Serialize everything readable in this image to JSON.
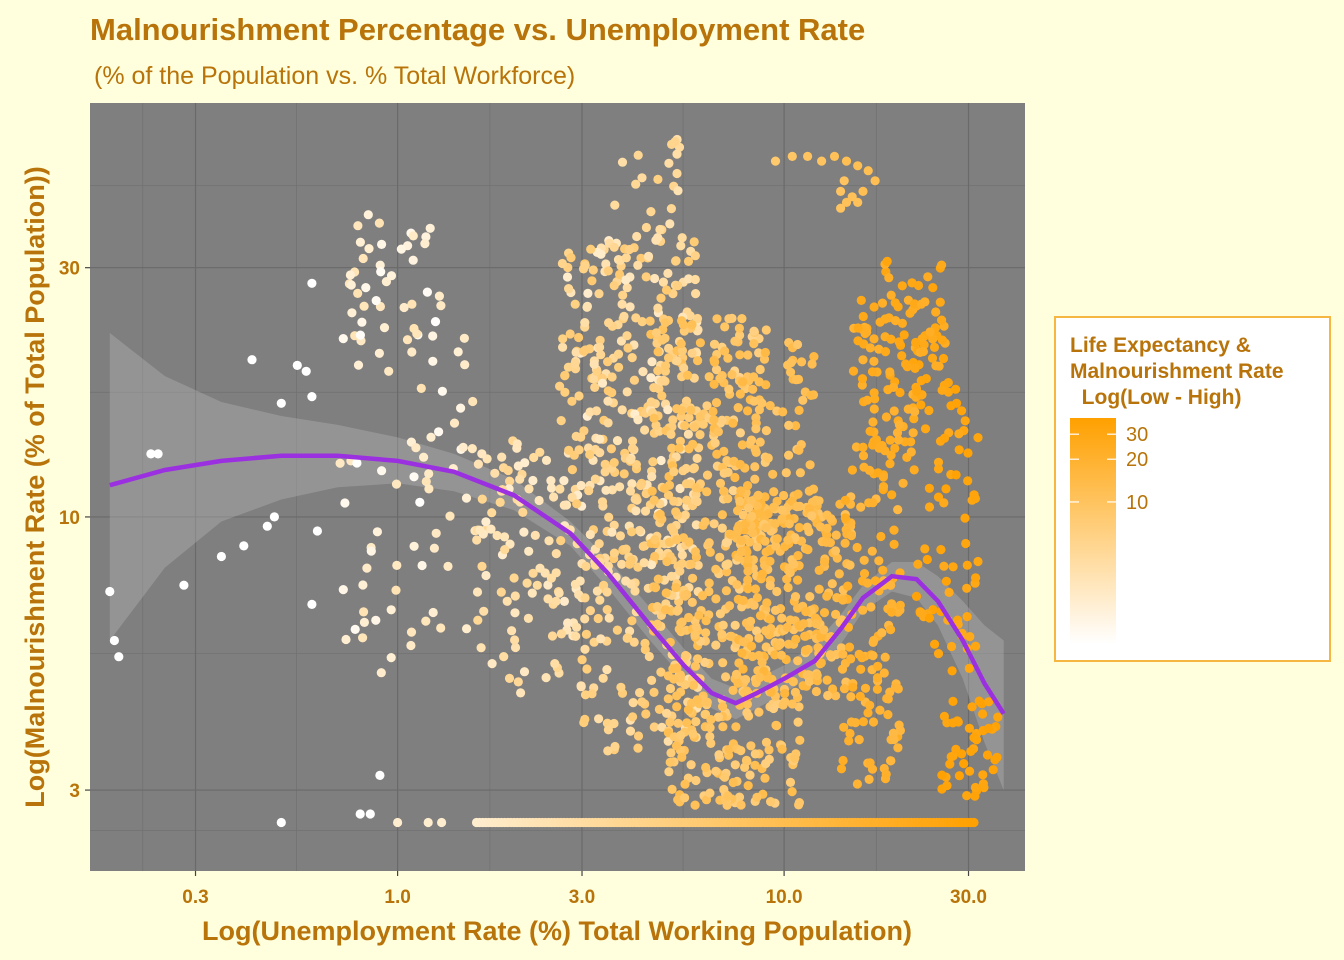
{
  "chart_data": {
    "type": "scatter",
    "title": "Malnourishment Percentage vs. Unemployment Rate",
    "subtitle": "(% of the Population vs. % Total Workforce)",
    "xlabel": "Log(Unemployment Rate (%) Total Working Population)",
    "ylabel": "Log(Malnourishment Rate (% of Total Population))",
    "x_scale": "log10",
    "y_scale": "log10",
    "xlim": [
      0.16,
      42
    ],
    "ylim": [
      2.1,
      62
    ],
    "x_ticks": [
      {
        "v": 0.3,
        "label": "0.3"
      },
      {
        "v": 1,
        "label": "1.0"
      },
      {
        "v": 3,
        "label": "3.0"
      },
      {
        "v": 10,
        "label": "10.0"
      },
      {
        "v": 30,
        "label": "30.0"
      }
    ],
    "y_ticks": [
      {
        "v": 3,
        "label": "3"
      },
      {
        "v": 10,
        "label": "10"
      },
      {
        "v": 30,
        "label": "30"
      }
    ],
    "grid": true,
    "panel_color": "#7f7f7f",
    "point_color_low": "#ffffff",
    "point_color_high": "#ffa000",
    "legend": {
      "title_lines": [
        "Life Expectancy &",
        "Malnourishment Rate",
        "  Log(Low - High)"
      ],
      "placement": "right",
      "ticks": [
        {
          "v": 10,
          "label": "10"
        },
        {
          "v": 20,
          "label": "20"
        },
        {
          "v": 30,
          "label": "30"
        }
      ],
      "range": [
        1,
        39
      ]
    },
    "smooth": {
      "color": "#9b30e0",
      "points": [
        [
          0.18,
          11.5
        ],
        [
          0.25,
          12.3
        ],
        [
          0.35,
          12.8
        ],
        [
          0.5,
          13.1
        ],
        [
          0.7,
          13.1
        ],
        [
          1.0,
          12.8
        ],
        [
          1.4,
          12.2
        ],
        [
          2.0,
          11.0
        ],
        [
          2.8,
          9.3
        ],
        [
          3.5,
          7.8
        ],
        [
          4.5,
          6.2
        ],
        [
          5.5,
          5.2
        ],
        [
          6.5,
          4.6
        ],
        [
          7.5,
          4.4
        ],
        [
          8.5,
          4.6
        ],
        [
          10,
          4.9
        ],
        [
          12,
          5.3
        ],
        [
          14,
          6.1
        ],
        [
          16,
          7.0
        ],
        [
          19,
          7.7
        ],
        [
          22,
          7.6
        ],
        [
          25,
          6.9
        ],
        [
          29,
          5.8
        ],
        [
          33,
          4.8
        ],
        [
          37,
          4.2
        ]
      ],
      "band_lo": [
        [
          0.18,
          5.8
        ],
        [
          0.25,
          8.0
        ],
        [
          0.35,
          9.8
        ],
        [
          0.5,
          10.8
        ],
        [
          0.7,
          11.4
        ],
        [
          1.0,
          11.6
        ],
        [
          1.4,
          11.2
        ],
        [
          2.0,
          10.3
        ],
        [
          2.8,
          8.8
        ],
        [
          3.5,
          7.3
        ],
        [
          4.5,
          5.8
        ],
        [
          5.5,
          4.9
        ],
        [
          6.5,
          4.3
        ],
        [
          7.5,
          4.1
        ],
        [
          8.5,
          4.3
        ],
        [
          10,
          4.6
        ],
        [
          12,
          5.0
        ],
        [
          14,
          5.7
        ],
        [
          16,
          6.6
        ],
        [
          19,
          7.2
        ],
        [
          22,
          7.0
        ],
        [
          25,
          6.2
        ],
        [
          29,
          4.9
        ],
        [
          33,
          3.7
        ],
        [
          37,
          3.0
        ]
      ],
      "band_hi": [
        [
          0.18,
          22.5
        ],
        [
          0.25,
          18.6
        ],
        [
          0.35,
          16.6
        ],
        [
          0.5,
          15.6
        ],
        [
          0.7,
          15.0
        ],
        [
          1.0,
          14.2
        ],
        [
          1.4,
          13.2
        ],
        [
          2.0,
          11.8
        ],
        [
          2.8,
          9.8
        ],
        [
          3.5,
          8.3
        ],
        [
          4.5,
          6.7
        ],
        [
          5.5,
          5.6
        ],
        [
          6.5,
          4.9
        ],
        [
          7.5,
          4.7
        ],
        [
          8.5,
          4.9
        ],
        [
          10,
          5.2
        ],
        [
          12,
          5.7
        ],
        [
          14,
          6.5
        ],
        [
          16,
          7.4
        ],
        [
          19,
          8.2
        ],
        [
          22,
          8.2
        ],
        [
          25,
          7.7
        ],
        [
          29,
          6.9
        ],
        [
          33,
          6.2
        ],
        [
          37,
          5.8
        ]
      ]
    },
    "clusters": [
      {
        "x": [
          0.7,
          1.6
        ],
        "y": [
          5,
          24
        ],
        "n": 70,
        "c": [
          1,
          3
        ]
      },
      {
        "x": [
          0.75,
          1.3
        ],
        "y": [
          22,
          38
        ],
        "n": 40,
        "c": [
          1,
          3
        ]
      },
      {
        "x": [
          1.6,
          3.0
        ],
        "y": [
          4.5,
          14
        ],
        "n": 110,
        "c": [
          2,
          5
        ]
      },
      {
        "x": [
          2.6,
          6.0
        ],
        "y": [
          8,
          34
        ],
        "n": 330,
        "c": [
          2,
          8
        ]
      },
      {
        "x": [
          3.0,
          6.0
        ],
        "y": [
          3.5,
          9
        ],
        "n": 120,
        "c": [
          3,
          8
        ]
      },
      {
        "x": [
          4.5,
          9.0
        ],
        "y": [
          6,
          24
        ],
        "n": 260,
        "c": [
          5,
          12
        ]
      },
      {
        "x": [
          5.0,
          11.0
        ],
        "y": [
          2.8,
          6.5
        ],
        "n": 220,
        "c": [
          6,
          13
        ]
      },
      {
        "x": [
          7.5,
          15.0
        ],
        "y": [
          4.5,
          11
        ],
        "n": 270,
        "c": [
          9,
          17
        ]
      },
      {
        "x": [
          6.5,
          12.0
        ],
        "y": [
          9,
          22
        ],
        "n": 110,
        "c": [
          8,
          15
        ]
      },
      {
        "x": [
          14.0,
          20.0
        ],
        "y": [
          3,
          11
        ],
        "n": 110,
        "c": [
          14,
          24
        ]
      },
      {
        "x": [
          15.0,
          22.0
        ],
        "y": [
          11,
          26
        ],
        "n": 90,
        "c": [
          18,
          28
        ]
      },
      {
        "x": [
          18.0,
          27.0
        ],
        "y": [
          17,
          31
        ],
        "n": 60,
        "c": [
          22,
          33
        ]
      },
      {
        "x": [
          22.0,
          32.0
        ],
        "y": [
          5,
          18
        ],
        "n": 70,
        "c": [
          26,
          36
        ]
      },
      {
        "x": [
          25.0,
          36.0
        ],
        "y": [
          2.9,
          4.5
        ],
        "n": 45,
        "c": [
          30,
          38
        ]
      },
      {
        "x": [
          3.5,
          5.5
        ],
        "y": [
          30,
          55
        ],
        "n": 30,
        "c": [
          3,
          6
        ]
      }
    ],
    "floor_row": {
      "x": [
        1.6,
        31
      ],
      "y": 2.6,
      "n": 160,
      "c": [
        2,
        38
      ]
    },
    "points": [
      [
        0.18,
        7.2,
        1
      ],
      [
        0.185,
        5.8,
        1
      ],
      [
        0.19,
        5.4,
        1
      ],
      [
        0.23,
        13.2,
        1
      ],
      [
        0.24,
        13.2,
        1
      ],
      [
        0.28,
        7.4,
        1
      ],
      [
        0.35,
        8.4,
        1
      ],
      [
        0.4,
        8.8,
        1
      ],
      [
        0.46,
        9.6,
        1
      ],
      [
        0.5,
        16.5,
        1
      ],
      [
        0.5,
        2.6,
        1
      ],
      [
        0.55,
        19.5,
        1
      ],
      [
        0.58,
        19,
        1
      ],
      [
        0.6,
        28,
        1
      ],
      [
        0.6,
        17,
        1
      ],
      [
        0.42,
        20,
        1
      ],
      [
        0.48,
        10,
        1
      ],
      [
        0.6,
        6.8,
        1
      ],
      [
        0.62,
        9.4,
        1
      ],
      [
        0.9,
        3.2,
        1
      ],
      [
        0.8,
        2.7,
        1
      ],
      [
        0.85,
        2.7,
        1
      ],
      [
        1.0,
        2.6,
        2
      ],
      [
        1.2,
        2.6,
        2
      ],
      [
        1.3,
        2.6,
        2
      ],
      [
        9.5,
        48,
        8
      ],
      [
        10.5,
        49,
        9
      ],
      [
        11.5,
        49,
        10
      ],
      [
        12.5,
        48,
        10
      ],
      [
        13.5,
        49,
        11
      ],
      [
        14.5,
        48,
        12
      ],
      [
        15.5,
        47,
        12
      ],
      [
        16.5,
        46,
        12
      ],
      [
        17.2,
        44,
        12
      ],
      [
        16.0,
        42,
        12
      ],
      [
        15.0,
        41,
        11
      ],
      [
        14.0,
        39,
        10
      ],
      [
        14.5,
        40,
        11
      ],
      [
        15.5,
        40,
        11
      ],
      [
        14.0,
        42,
        10
      ],
      [
        14.3,
        44,
        10
      ]
    ]
  }
}
